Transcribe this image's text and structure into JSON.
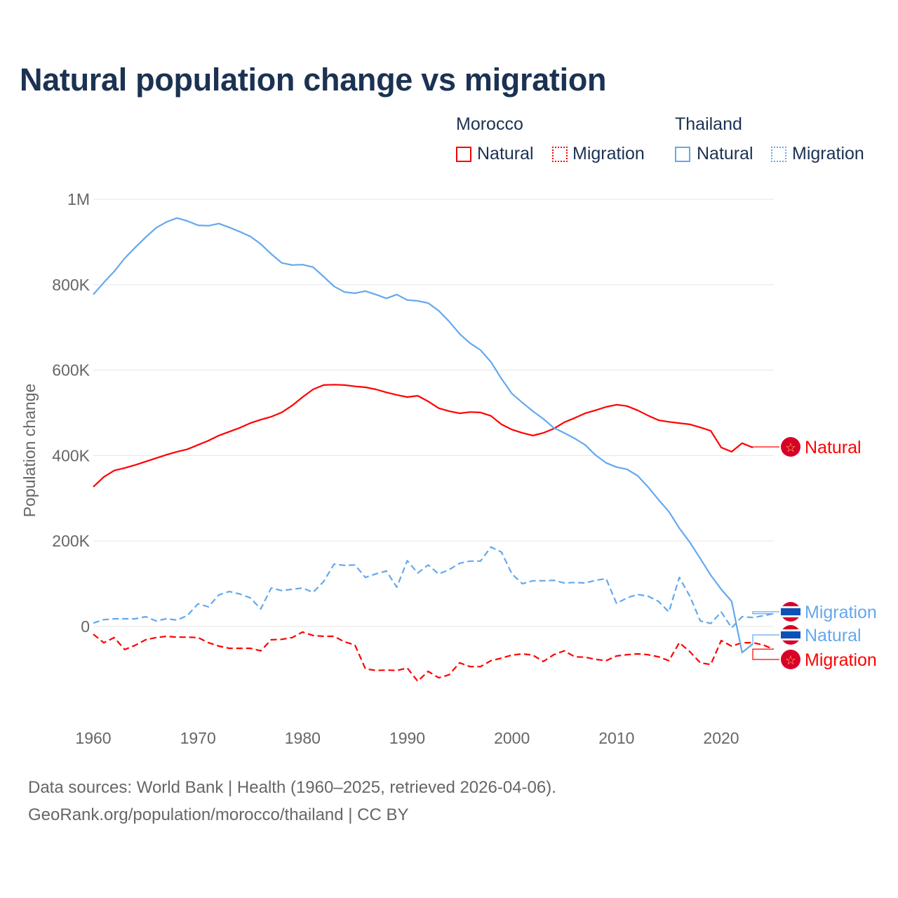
{
  "title": "Natural population change vs migration",
  "legend": {
    "groups": [
      {
        "country": "Morocco",
        "items": [
          "Natural",
          "Migration"
        ]
      },
      {
        "country": "Thailand",
        "items": [
          "Natural",
          "Migration"
        ]
      }
    ]
  },
  "colors": {
    "morocco": "#ff0000",
    "thailand": "#64a8ee",
    "text": "#1b3252",
    "grid": "#e6e6e6"
  },
  "source": {
    "line1": "Data sources: World Bank | Health (1960–2025, retrieved 2026-04-06).",
    "line2": "GeoRank.org/population/morocco/thailand | CC BY"
  },
  "chart_data": {
    "type": "line",
    "title": "Natural population change vs migration",
    "xlabel": "",
    "ylabel": "Population change",
    "xlim": [
      1960,
      2025
    ],
    "ylim": [
      -200000,
      1000000
    ],
    "xticks": [
      1960,
      1970,
      1980,
      1990,
      2000,
      2010,
      2020
    ],
    "yticks": [
      {
        "v": 0,
        "label": "0"
      },
      {
        "v": 200000,
        "label": "200K"
      },
      {
        "v": 400000,
        "label": "400K"
      },
      {
        "v": 600000,
        "label": "600K"
      },
      {
        "v": 800000,
        "label": "800K"
      },
      {
        "v": 1000000,
        "label": "1M"
      }
    ],
    "grid": true,
    "series": [
      {
        "name": "Natural",
        "country": "Morocco",
        "flag": "morocco",
        "style": "solid",
        "start": 1960,
        "end_label": "Natural",
        "values_k": [
          327,
          350,
          365,
          371,
          378,
          386,
          394,
          402,
          409,
          415,
          425,
          435,
          447,
          456,
          465,
          476,
          484,
          491,
          501,
          517,
          537,
          555,
          565,
          566,
          565,
          562,
          560,
          555,
          548,
          542,
          537,
          540,
          527,
          511,
          504,
          499,
          502,
          501,
          493,
          473,
          461,
          453,
          447,
          453,
          463,
          478,
          488,
          499,
          506,
          514,
          519,
          516,
          506,
          494,
          483,
          479,
          476,
          473,
          466,
          458,
          419,
          409,
          429,
          419
        ]
      },
      {
        "name": "Migration",
        "country": "Morocco",
        "flag": "morocco",
        "style": "dashed",
        "start": 1960,
        "end_label": "Migration",
        "values_k": [
          -18,
          -38,
          -26,
          -54,
          -44,
          -31,
          -26,
          -23,
          -25,
          -25,
          -26,
          -38,
          -46,
          -51,
          -51,
          -51,
          -57,
          -31,
          -30,
          -26,
          -13,
          -21,
          -23,
          -23,
          -36,
          -43,
          -99,
          -103,
          -102,
          -103,
          -97,
          -128,
          -105,
          -120,
          -113,
          -85,
          -94,
          -94,
          -80,
          -74,
          -67,
          -64,
          -67,
          -82,
          -66,
          -57,
          -71,
          -72,
          -77,
          -80,
          -69,
          -66,
          -64,
          -66,
          -71,
          -80,
          -38,
          -59,
          -85,
          -89,
          -33,
          -46,
          -38,
          -38,
          -43,
          -53
        ]
      },
      {
        "name": "Natural",
        "country": "Thailand",
        "flag": "thailand",
        "style": "solid",
        "start": 1960,
        "end_label": "Natural",
        "values_k": [
          777,
          805,
          831,
          862,
          887,
          911,
          933,
          947,
          956,
          949,
          939,
          938,
          943,
          934,
          924,
          913,
          895,
          872,
          851,
          846,
          847,
          841,
          819,
          796,
          783,
          780,
          785,
          777,
          768,
          777,
          764,
          762,
          757,
          739,
          714,
          685,
          663,
          647,
          619,
          580,
          545,
          524,
          504,
          486,
          465,
          453,
          440,
          425,
          401,
          383,
          373,
          368,
          353,
          327,
          297,
          269,
          230,
          197,
          159,
          120,
          87,
          59,
          -61,
          -41
        ]
      },
      {
        "name": "Migration",
        "country": "Thailand",
        "flag": "thailand",
        "style": "dashed",
        "start": 1960,
        "end_label": "Migration",
        "values_k": [
          8,
          16,
          18,
          18,
          18,
          23,
          13,
          18,
          15,
          26,
          53,
          46,
          74,
          82,
          76,
          67,
          41,
          90,
          84,
          87,
          90,
          80,
          105,
          146,
          143,
          144,
          115,
          123,
          130,
          92,
          154,
          125,
          144,
          123,
          133,
          148,
          153,
          153,
          186,
          174,
          123,
          100,
          107,
          107,
          108,
          102,
          103,
          102,
          108,
          112,
          54,
          67,
          75,
          71,
          59,
          34,
          115,
          71,
          13,
          7,
          34,
          -3,
          23,
          21,
          25,
          30
        ]
      }
    ]
  }
}
